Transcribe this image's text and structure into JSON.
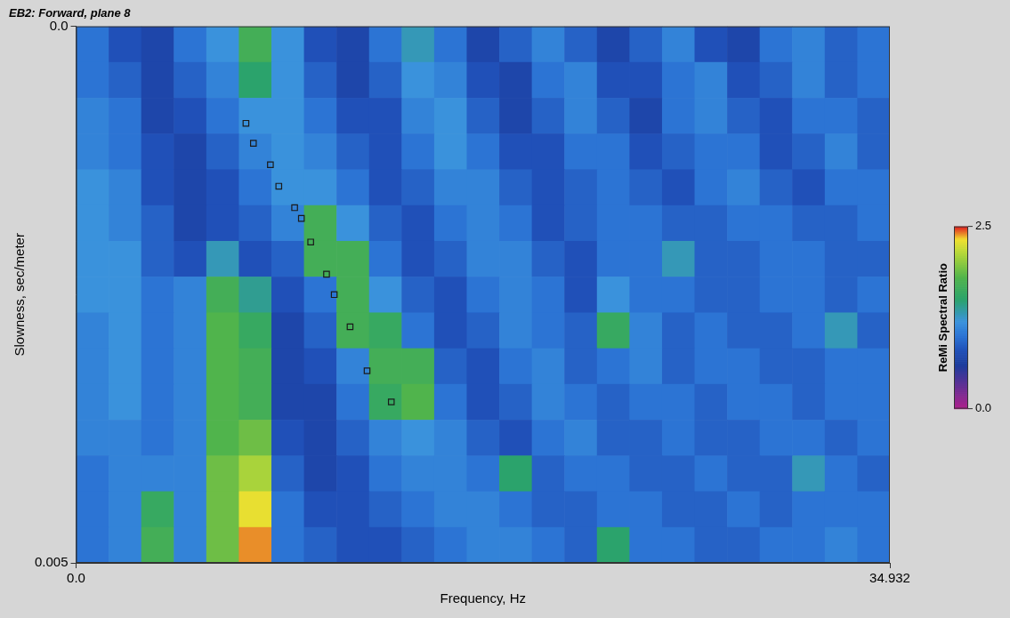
{
  "chart_data": {
    "type": "heatmap",
    "title": "EB2: Forward, plane 8",
    "xlabel": "Frequency, Hz",
    "ylabel": "Slowness, sec/meter",
    "xlim": [
      0,
      34.932
    ],
    "xticks": [
      {
        "value": 0,
        "label": "0.0"
      },
      34.932
    ],
    "ylim": [
      0,
      0.005
    ],
    "yticks": [
      {
        "value": 0,
        "label": "0.0"
      },
      0.005
    ],
    "grid": false,
    "heatmap": {
      "x_edges": [
        0,
        1.397,
        2.795,
        4.192,
        5.589,
        6.986,
        8.384,
        9.781,
        11.178,
        12.576,
        13.973,
        15.37,
        16.767,
        18.165,
        19.562,
        20.959,
        22.356,
        23.754,
        25.151,
        26.548,
        27.946,
        29.343,
        30.74,
        32.137,
        33.535,
        34.932
      ],
      "y_edges": [
        0,
        0.000333,
        0.000667,
        0.001,
        0.001333,
        0.001667,
        0.002,
        0.002333,
        0.002667,
        0.003,
        0.003333,
        0.003667,
        0.004,
        0.004333,
        0.004667,
        0.005
      ],
      "values": [
        [
          1.0,
          0.8,
          0.7,
          1.0,
          1.2,
          1.7,
          1.2,
          0.8,
          0.7,
          1.0,
          1.3,
          1.0,
          0.7,
          0.9,
          1.1,
          0.9,
          0.7,
          0.9,
          1.1,
          0.8,
          0.7,
          1.0,
          1.1,
          0.9,
          1.0
        ],
        [
          1.0,
          0.9,
          0.7,
          0.9,
          1.1,
          1.5,
          1.2,
          0.9,
          0.7,
          0.9,
          1.2,
          1.1,
          0.8,
          0.7,
          1.0,
          1.1,
          0.8,
          0.8,
          1.0,
          1.1,
          0.8,
          0.9,
          1.1,
          0.9,
          1.0
        ],
        [
          1.1,
          1.0,
          0.7,
          0.8,
          1.0,
          1.2,
          1.2,
          1.0,
          0.8,
          0.8,
          1.1,
          1.2,
          0.9,
          0.7,
          0.9,
          1.1,
          0.9,
          0.7,
          1.0,
          1.1,
          0.9,
          0.8,
          1.0,
          1.0,
          0.9
        ],
        [
          1.1,
          1.0,
          0.8,
          0.7,
          0.9,
          1.1,
          1.2,
          1.1,
          0.9,
          0.8,
          1.0,
          1.2,
          1.0,
          0.8,
          0.8,
          1.0,
          1.0,
          0.8,
          0.9,
          1.0,
          1.0,
          0.8,
          0.9,
          1.1,
          0.9
        ],
        [
          1.2,
          1.1,
          0.8,
          0.7,
          0.8,
          1.0,
          1.2,
          1.2,
          1.0,
          0.8,
          0.9,
          1.1,
          1.1,
          0.9,
          0.8,
          0.9,
          1.0,
          0.9,
          0.8,
          1.0,
          1.1,
          0.9,
          0.8,
          1.0,
          1.0
        ],
        [
          1.2,
          1.1,
          0.9,
          0.7,
          0.8,
          0.9,
          1.1,
          1.7,
          1.2,
          0.9,
          0.8,
          1.0,
          1.1,
          1.0,
          0.8,
          0.9,
          1.0,
          1.0,
          0.9,
          0.9,
          1.0,
          1.0,
          0.9,
          0.9,
          1.0
        ],
        [
          1.2,
          1.2,
          0.9,
          0.8,
          1.3,
          0.8,
          0.9,
          1.7,
          1.7,
          1.0,
          0.8,
          0.9,
          1.1,
          1.1,
          0.9,
          0.8,
          1.0,
          1.0,
          1.3,
          0.9,
          0.9,
          1.0,
          1.0,
          0.9,
          0.9
        ],
        [
          1.2,
          1.2,
          1.0,
          1.1,
          1.7,
          1.4,
          0.8,
          1.0,
          1.7,
          1.2,
          0.9,
          0.8,
          1.0,
          1.1,
          1.0,
          0.8,
          1.2,
          1.0,
          1.0,
          0.9,
          0.9,
          1.0,
          1.0,
          0.9,
          1.0
        ],
        [
          1.1,
          1.2,
          1.0,
          1.1,
          1.8,
          1.6,
          0.7,
          0.9,
          1.7,
          1.6,
          1.0,
          0.8,
          0.9,
          1.1,
          1.0,
          0.9,
          1.6,
          1.1,
          0.9,
          1.0,
          0.9,
          0.9,
          1.0,
          1.3,
          0.9
        ],
        [
          1.1,
          1.2,
          1.0,
          1.1,
          1.8,
          1.7,
          0.7,
          0.8,
          1.1,
          1.7,
          1.7,
          0.9,
          0.8,
          1.0,
          1.1,
          0.9,
          1.0,
          1.1,
          0.9,
          1.0,
          1.0,
          0.9,
          0.9,
          1.0,
          1.0
        ],
        [
          1.1,
          1.2,
          1.0,
          1.1,
          1.8,
          1.7,
          0.7,
          0.7,
          1.0,
          1.6,
          1.8,
          1.0,
          0.8,
          0.9,
          1.1,
          1.0,
          0.9,
          1.0,
          1.0,
          0.9,
          1.0,
          1.0,
          0.9,
          1.0,
          1.0
        ],
        [
          1.1,
          1.1,
          1.0,
          1.1,
          1.8,
          1.9,
          0.8,
          0.7,
          0.9,
          1.1,
          1.2,
          1.1,
          0.9,
          0.8,
          1.0,
          1.1,
          0.9,
          0.9,
          1.0,
          0.9,
          0.9,
          1.0,
          1.0,
          0.9,
          1.0
        ],
        [
          1.0,
          1.1,
          1.1,
          1.1,
          1.9,
          2.1,
          0.9,
          0.7,
          0.8,
          1.0,
          1.1,
          1.1,
          1.0,
          1.5,
          0.9,
          1.0,
          1.0,
          0.9,
          0.9,
          1.0,
          0.9,
          0.9,
          1.3,
          1.0,
          0.9
        ],
        [
          1.0,
          1.1,
          1.6,
          1.1,
          1.9,
          2.3,
          1.0,
          0.8,
          0.8,
          0.9,
          1.0,
          1.1,
          1.1,
          1.0,
          0.9,
          0.9,
          1.0,
          1.0,
          0.9,
          0.9,
          1.0,
          0.9,
          1.0,
          1.0,
          1.0
        ],
        [
          1.0,
          1.1,
          1.7,
          1.1,
          1.9,
          2.4,
          1.0,
          0.9,
          0.8,
          0.8,
          0.9,
          1.0,
          1.1,
          1.1,
          1.0,
          0.9,
          1.5,
          1.0,
          1.0,
          0.9,
          0.9,
          1.0,
          1.0,
          1.1,
          1.0
        ]
      ]
    },
    "colorbar": {
      "label": "ReMi Spectral Ratio",
      "range": [
        0,
        2.5
      ],
      "ticks": [
        {
          "value": 0,
          "label": "0.0"
        },
        2.5
      ]
    },
    "series": [
      {
        "type": "scatter",
        "marker": "square",
        "color": "#1a1a1a",
        "x": [
          7.29,
          7.61,
          8.34,
          8.7,
          9.38,
          9.67,
          10.07,
          10.75,
          11.08,
          11.76,
          12.49,
          13.53
        ],
        "values": [
          0.000904,
          0.00109,
          0.00129,
          0.00149,
          0.00169,
          0.00179,
          0.00201,
          0.00231,
          0.0025,
          0.0028,
          0.00321,
          0.0035
        ]
      }
    ]
  }
}
